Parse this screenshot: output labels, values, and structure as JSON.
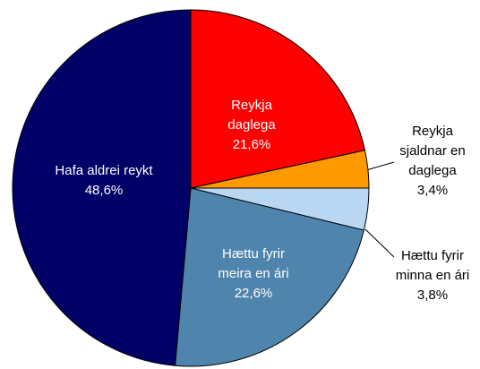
{
  "chart_data": {
    "type": "pie",
    "categories": [
      "Reykja daglega",
      "Reykja sjaldnar en daglega",
      "Hættu fyrir minna en ári",
      "Hættu fyrir meira en ári",
      "Hafa aldrei reykt"
    ],
    "values": [
      21.6,
      3.4,
      3.8,
      22.6,
      48.6
    ],
    "value_labels": [
      "21,6%",
      "3,4%",
      "3,8%",
      "22,6%",
      "48,6%"
    ],
    "colors": [
      "#ff0000",
      "#ff9900",
      "#b9d6f2",
      "#4f84ac",
      "#000066"
    ]
  }
}
